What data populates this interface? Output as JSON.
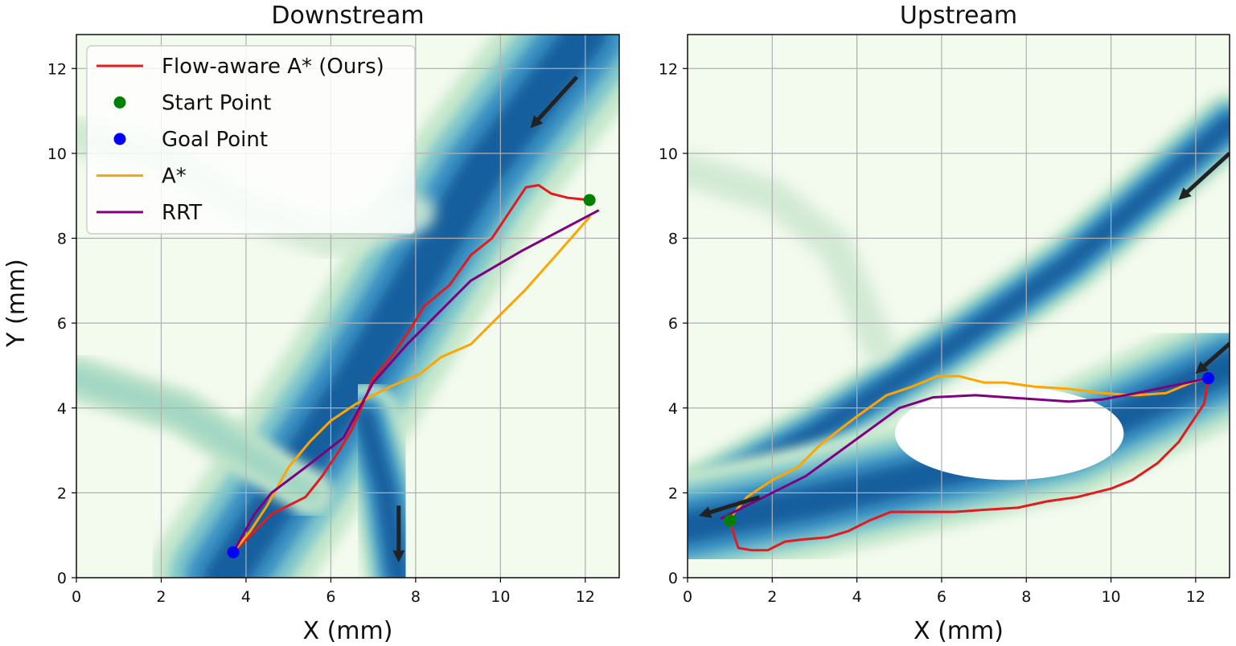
{
  "chart_data": [
    {
      "type": "line",
      "title": "Downstream",
      "xlabel": "X (mm)",
      "ylabel": "Y (mm)",
      "xlim": [
        0,
        12.8
      ],
      "ylim": [
        0,
        12.8
      ],
      "xticks": [
        0,
        2,
        4,
        6,
        8,
        10,
        12
      ],
      "yticks": [
        0,
        2,
        4,
        6,
        8,
        10,
        12
      ],
      "grid": true,
      "legend_position": "top-left",
      "background": "vessel flow-speed map (green-blue colormap)",
      "vessels": [
        {
          "points": [
            [
              3.5,
              0.0
            ],
            [
              6.5,
              4.5
            ],
            [
              9.5,
              9.5
            ],
            [
              12.0,
              12.8
            ]
          ],
          "width": 2.6,
          "speed": "high"
        },
        {
          "points": [
            [
              7.6,
              0.0
            ],
            [
              7.3,
              2.0
            ],
            [
              6.8,
              3.8
            ]
          ],
          "width": 1.2,
          "speed": "high"
        },
        {
          "points": [
            [
              0.0,
              4.7
            ],
            [
              2.5,
              3.9
            ],
            [
              4.2,
              2.8
            ],
            [
              5.5,
              2.0
            ]
          ],
          "width": 0.9,
          "speed": "low"
        },
        {
          "points": [
            [
              0.0,
              10.4
            ],
            [
              2.0,
              10.0
            ],
            [
              4.0,
              8.7
            ],
            [
              6.0,
              8.0
            ],
            [
              8.0,
              8.6
            ]
          ],
          "width": 0.9,
          "speed": "faint"
        }
      ],
      "flow_arrows": [
        {
          "from": [
            11.8,
            11.8
          ],
          "to": [
            10.8,
            10.7
          ]
        },
        {
          "from": [
            7.6,
            1.7
          ],
          "to": [
            7.6,
            0.5
          ]
        }
      ],
      "series": [
        {
          "name": "Flow-aware A* (Ours)",
          "color": "#e41a1c",
          "points": [
            [
              12.1,
              8.9
            ],
            [
              11.6,
              8.95
            ],
            [
              11.2,
              9.05
            ],
            [
              10.9,
              9.25
            ],
            [
              10.6,
              9.2
            ],
            [
              10.2,
              8.6
            ],
            [
              9.8,
              8.0
            ],
            [
              9.3,
              7.6
            ],
            [
              8.8,
              6.9
            ],
            [
              8.2,
              6.4
            ],
            [
              7.9,
              5.9
            ],
            [
              7.5,
              5.3
            ],
            [
              7.0,
              4.7
            ],
            [
              6.8,
              4.2
            ],
            [
              6.5,
              3.5
            ],
            [
              6.2,
              3.0
            ],
            [
              5.8,
              2.4
            ],
            [
              5.4,
              1.9
            ],
            [
              4.6,
              1.5
            ],
            [
              4.2,
              1.1
            ],
            [
              3.7,
              0.6
            ]
          ]
        },
        {
          "name": "Start Point",
          "type": "scatter",
          "color": "#008000",
          "points": [
            [
              12.1,
              8.9
            ]
          ]
        },
        {
          "name": "Goal Point",
          "type": "scatter",
          "color": "#0000ff",
          "points": [
            [
              3.7,
              0.6
            ]
          ]
        },
        {
          "name": "A*",
          "color": "#ffa500",
          "points": [
            [
              12.1,
              8.5
            ],
            [
              11.4,
              7.7
            ],
            [
              10.6,
              6.8
            ],
            [
              9.9,
              6.1
            ],
            [
              9.3,
              5.5
            ],
            [
              8.6,
              5.2
            ],
            [
              8.1,
              4.8
            ],
            [
              7.4,
              4.5
            ],
            [
              6.6,
              4.1
            ],
            [
              6.0,
              3.7
            ],
            [
              5.5,
              3.2
            ],
            [
              5.0,
              2.6
            ],
            [
              4.5,
              1.7
            ],
            [
              4.1,
              1.1
            ],
            [
              3.7,
              0.6
            ]
          ]
        },
        {
          "name": "RRT",
          "color": "#800080",
          "points": [
            [
              12.3,
              8.65
            ],
            [
              10.5,
              7.7
            ],
            [
              9.3,
              7.0
            ],
            [
              8.4,
              6.1
            ],
            [
              7.8,
              5.5
            ],
            [
              7.0,
              4.6
            ],
            [
              6.3,
              3.3
            ],
            [
              5.4,
              2.6
            ],
            [
              4.6,
              2.0
            ],
            [
              4.2,
              1.5
            ],
            [
              3.7,
              0.6
            ]
          ]
        }
      ]
    },
    {
      "type": "line",
      "title": "Upstream",
      "xlabel": "X (mm)",
      "ylabel": "",
      "xlim": [
        0,
        12.8
      ],
      "ylim": [
        0,
        12.8
      ],
      "xticks": [
        0,
        2,
        4,
        6,
        8,
        10,
        12
      ],
      "yticks": [
        0,
        2,
        4,
        6,
        8,
        10,
        12
      ],
      "grid": true,
      "background": "vessel flow-speed map (green-blue colormap)",
      "vessels": [
        {
          "points": [
            [
              0.0,
              1.8
            ],
            [
              3.0,
              3.4
            ],
            [
              6.0,
              5.3
            ],
            [
              9.0,
              7.4
            ],
            [
              12.8,
              10.7
            ]
          ],
          "width": 1.1,
          "speed": "high"
        },
        {
          "points": [
            [
              0.0,
              1.2
            ],
            [
              3.0,
              1.8
            ],
            [
              6.0,
              2.5
            ],
            [
              9.0,
              3.2
            ],
            [
              12.8,
              5.0
            ]
          ],
          "width": 2.0,
          "speed": "high"
        },
        {
          "points": [
            [
              0.0,
              9.6
            ],
            [
              2.0,
              9.0
            ],
            [
              3.5,
              7.8
            ],
            [
              4.5,
              5.5
            ]
          ],
          "width": 0.8,
          "speed": "faint"
        }
      ],
      "obstacle": {
        "shape": "ellipse",
        "center": [
          7.6,
          3.4
        ],
        "rx": 2.7,
        "ry": 1.1
      },
      "flow_arrows": [
        {
          "from": [
            12.8,
            10.0
          ],
          "to": [
            11.7,
            9.0
          ]
        },
        {
          "from": [
            12.9,
            5.6
          ],
          "to": [
            12.1,
            4.9
          ]
        },
        {
          "from": [
            1.7,
            1.9
          ],
          "to": [
            0.4,
            1.5
          ]
        }
      ],
      "series": [
        {
          "name": "Flow-aware A* (Ours)",
          "color": "#e41a1c",
          "points": [
            [
              12.3,
              4.7
            ],
            [
              12.2,
              4.1
            ],
            [
              12.0,
              3.8
            ],
            [
              11.6,
              3.2
            ],
            [
              11.1,
              2.7
            ],
            [
              10.5,
              2.3
            ],
            [
              10.0,
              2.1
            ],
            [
              9.2,
              1.9
            ],
            [
              8.5,
              1.8
            ],
            [
              7.8,
              1.65
            ],
            [
              7.0,
              1.6
            ],
            [
              6.3,
              1.55
            ],
            [
              5.5,
              1.55
            ],
            [
              4.8,
              1.55
            ],
            [
              4.3,
              1.35
            ],
            [
              3.8,
              1.1
            ],
            [
              3.3,
              0.95
            ],
            [
              2.7,
              0.9
            ],
            [
              2.3,
              0.85
            ],
            [
              1.9,
              0.65
            ],
            [
              1.5,
              0.65
            ],
            [
              1.2,
              0.7
            ],
            [
              1.1,
              1.0
            ],
            [
              1.0,
              1.35
            ]
          ]
        },
        {
          "name": "Start Point",
          "type": "scatter",
          "color": "#008000",
          "points": [
            [
              1.0,
              1.35
            ]
          ]
        },
        {
          "name": "Goal Point",
          "type": "scatter",
          "color": "#0000ff",
          "points": [
            [
              12.3,
              4.7
            ]
          ]
        },
        {
          "name": "A*",
          "color": "#ffa500",
          "points": [
            [
              1.0,
              1.4
            ],
            [
              1.4,
              1.9
            ],
            [
              2.0,
              2.3
            ],
            [
              2.6,
              2.6
            ],
            [
              3.1,
              3.1
            ],
            [
              3.6,
              3.5
            ],
            [
              4.0,
              3.8
            ],
            [
              4.7,
              4.3
            ],
            [
              5.3,
              4.5
            ],
            [
              5.9,
              4.75
            ],
            [
              6.4,
              4.75
            ],
            [
              7.0,
              4.6
            ],
            [
              7.5,
              4.6
            ],
            [
              8.2,
              4.5
            ],
            [
              9.0,
              4.45
            ],
            [
              9.8,
              4.35
            ],
            [
              10.6,
              4.3
            ],
            [
              11.3,
              4.35
            ],
            [
              11.9,
              4.6
            ],
            [
              12.3,
              4.7
            ]
          ]
        },
        {
          "name": "RRT",
          "color": "#800080",
          "points": [
            [
              0.8,
              1.4
            ],
            [
              2.8,
              2.4
            ],
            [
              5.0,
              4.0
            ],
            [
              5.8,
              4.25
            ],
            [
              6.8,
              4.3
            ],
            [
              9.0,
              4.15
            ],
            [
              9.8,
              4.2
            ],
            [
              10.6,
              4.35
            ],
            [
              12.3,
              4.7
            ]
          ]
        }
      ]
    }
  ]
}
